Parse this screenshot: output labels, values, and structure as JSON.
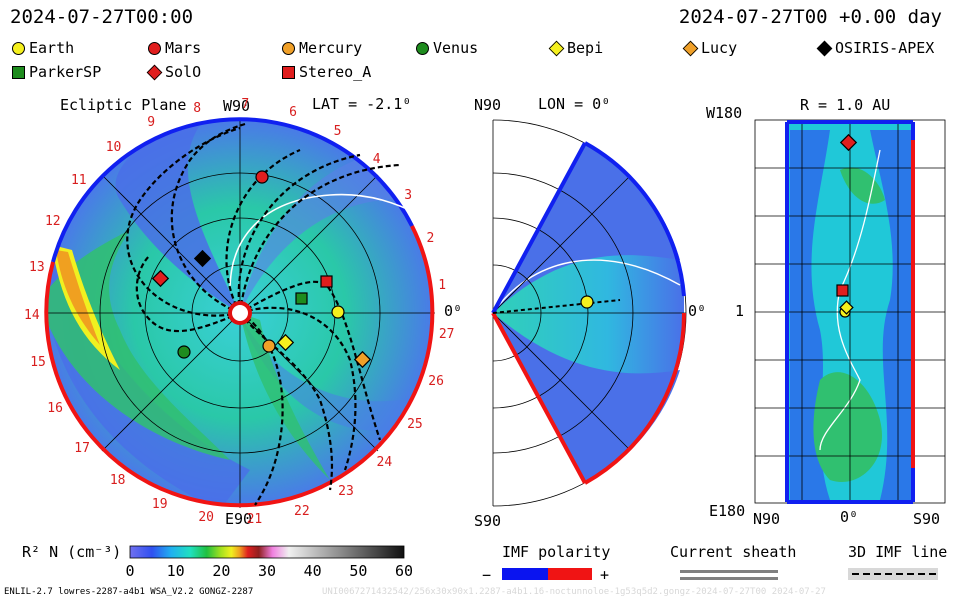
{
  "header": {
    "left_time": "2024-07-27T00:00",
    "right_time": "2024-07-27T00 +0.00 day"
  },
  "bodies": [
    {
      "name": "Earth",
      "shape": "circle",
      "color": "#f5f01e"
    },
    {
      "name": "Mars",
      "shape": "circle",
      "color": "#e01e1e"
    },
    {
      "name": "Mercury",
      "shape": "circle",
      "color": "#f0a028"
    },
    {
      "name": "Venus",
      "shape": "circle",
      "color": "#1e8c1e"
    },
    {
      "name": "Bepi",
      "shape": "diamond",
      "color": "#f5f01e"
    },
    {
      "name": "Lucy",
      "shape": "diamond",
      "color": "#f0a028"
    },
    {
      "name": "OSIRIS-APEX",
      "shape": "diamond",
      "color": "#000000"
    },
    {
      "name": "ParkerSP",
      "shape": "square",
      "color": "#1e8c1e"
    },
    {
      "name": "SolO",
      "shape": "diamond",
      "color": "#e01e1e"
    },
    {
      "name": "Stereo_A",
      "shape": "square",
      "color": "#e01e1e"
    }
  ],
  "ecliptic": {
    "title": "Ecliptic Plane",
    "top_label": "W90",
    "lat_label": "LAT = -2.1⁰",
    "bottom_label": "E90",
    "right_label": "0⁰",
    "carrington_ticks": [
      "1",
      "2",
      "3",
      "4",
      "5",
      "6",
      "7",
      "8",
      "9",
      "10",
      "11",
      "12",
      "13",
      "14",
      "15",
      "16",
      "17",
      "18",
      "19",
      "20",
      "21",
      "22",
      "23",
      "24",
      "25",
      "26",
      "27"
    ]
  },
  "meridional": {
    "top_label": "N90",
    "lon_label": "LON = 0⁰",
    "bottom_label": "S90",
    "right_label": "0⁰"
  },
  "radial": {
    "title": "R = 1.0 AU",
    "top_left": "W180",
    "bottom_left": "E180",
    "left_mid": "1",
    "bottom_axis": [
      "N90",
      "0⁰",
      "S90"
    ]
  },
  "colorbar": {
    "label": "R² N (cm⁻³)",
    "ticks": [
      "0",
      "10",
      "20",
      "30",
      "40",
      "50",
      "60"
    ],
    "min": 0,
    "max": 60
  },
  "imf": {
    "title": "IMF polarity",
    "minus": "−",
    "plus": "+",
    "neg_color": "#0a14f0",
    "pos_color": "#f01414"
  },
  "sheath": {
    "title": "Current sheath"
  },
  "imf3d": {
    "title": "3D IMF line"
  },
  "footer": {
    "left": "ENLIL-2.7 lowres-2287-a4b1 WSA_V2.2 GONGZ-2287",
    "right": "UNI0067271432542/256x30x90x1.2287-a4b1.16-noctunnoloe-1g53q5d2.gongz-2024-07-27T00 2024-07-27"
  }
}
